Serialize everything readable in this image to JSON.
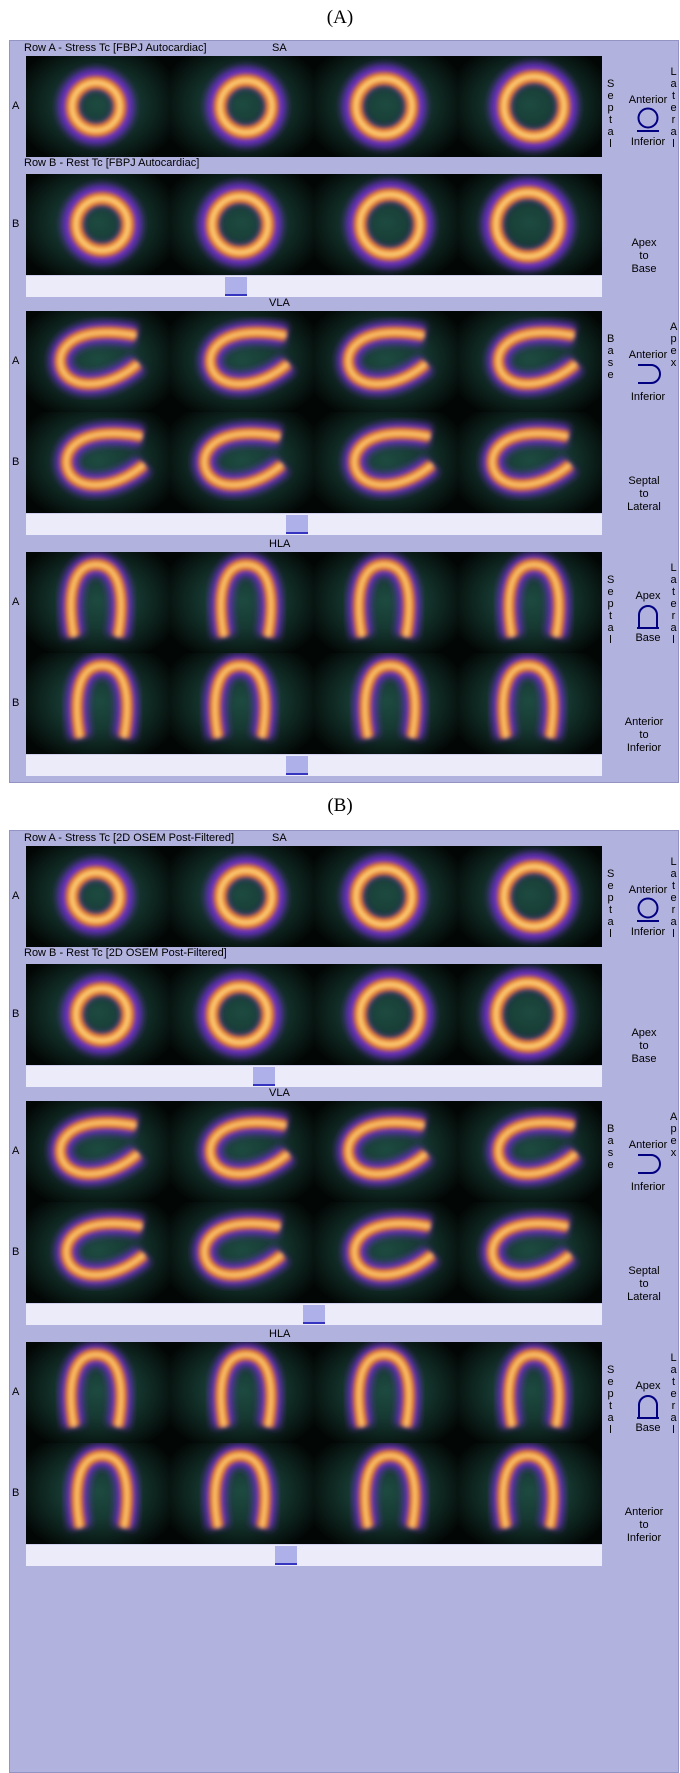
{
  "figure_labels": {
    "a": "(A)",
    "b": "(B)"
  },
  "panel_a": {
    "sa": {
      "title": "SA",
      "row_a": "Row A - Stress Tc [FBPJ Autocardiac]",
      "row_b": "Row B - Rest Tc [FBPJ Autocardiac]"
    },
    "vla": {
      "title": "VLA"
    },
    "hla": {
      "title": "HLA"
    }
  },
  "panel_b": {
    "sa": {
      "title": "SA",
      "row_a": "Row A - Stress Tc [2D OSEM Post-Filtered]",
      "row_b": "Row B - Rest Tc [2D OSEM Post-Filtered]"
    },
    "vla": {
      "title": "VLA"
    },
    "hla": {
      "title": "HLA"
    }
  },
  "row_labels": {
    "a": "A",
    "b": "B"
  },
  "sa_legend": {
    "top": "Anterior",
    "bottom": "Inferior",
    "left": "Septal",
    "right": "Lateral",
    "dir": [
      "Apex",
      "to",
      "Base"
    ]
  },
  "vla_legend": {
    "top": "Anterior",
    "bottom": "Inferior",
    "left": "Base",
    "right": "Apex",
    "dir": [
      "Septal",
      "to",
      "Lateral"
    ]
  },
  "hla_legend": {
    "top": "Apex",
    "bottom": "Base",
    "left": "Septal",
    "right": "Lateral",
    "dir": [
      "Anterior",
      "to",
      "Inferior"
    ]
  },
  "scroll_positions": {
    "a_sa": 0.36,
    "a_vla": 0.47,
    "a_hla": 0.47,
    "b_sa": 0.41,
    "b_vla": 0.5,
    "b_hla": 0.45
  },
  "colors": {
    "panel": "#b2b2de",
    "green_highlight": "#4fdd3a",
    "red_highlight": "#e8242a",
    "blue_highlight": "#2a2ae8"
  }
}
